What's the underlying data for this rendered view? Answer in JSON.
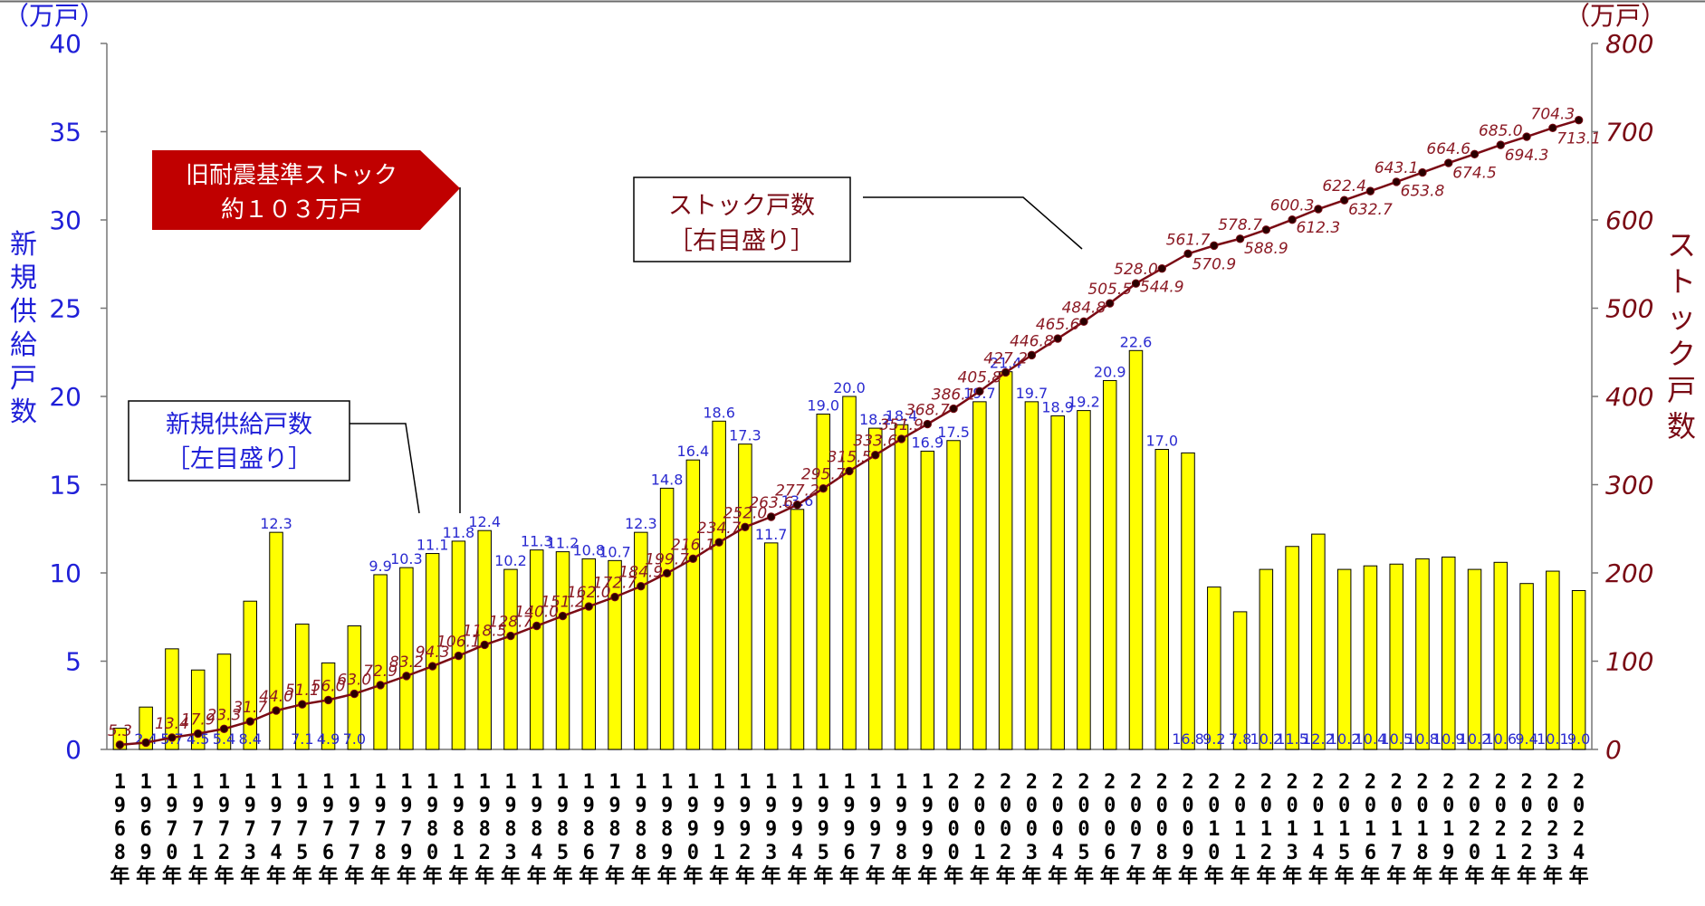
{
  "chart_data": {
    "type": "bar+line",
    "left_axis": {
      "unit": "（万戸）",
      "title": "新規供給戸数",
      "ticks": [
        "0",
        "5",
        "10",
        "15",
        "20",
        "25",
        "30",
        "35",
        "40"
      ],
      "ylim": [
        0,
        40
      ],
      "color": "#1f1fd8"
    },
    "right_axis": {
      "unit": "（万戸）",
      "title": "ストック戸数",
      "ticks": [
        "0",
        "100",
        "200",
        "300",
        "400",
        "500",
        "600",
        "700",
        "800"
      ],
      "ylim": [
        0,
        800
      ],
      "color": "#7a0a14"
    },
    "categories": [
      "1968年",
      "1969年",
      "1970年",
      "1971年",
      "1972年",
      "1973年",
      "1974年",
      "1975年",
      "1976年",
      "1977年",
      "1978年",
      "1979年",
      "1980年",
      "1981年",
      "1982年",
      "1983年",
      "1984年",
      "1985年",
      "1986年",
      "1987年",
      "1988年",
      "1989年",
      "1990年",
      "1991年",
      "1992年",
      "1993年",
      "1994年",
      "1995年",
      "1996年",
      "1997年",
      "1998年",
      "1999年",
      "2000年",
      "2001年",
      "2002年",
      "2003年",
      "2004年",
      "2005年",
      "2006年",
      "2007年",
      "2008年",
      "2009年",
      "2010年",
      "2011年",
      "2012年",
      "2013年",
      "2014年",
      "2015年",
      "2016年",
      "2017年",
      "2018年",
      "2019年",
      "2020年",
      "2021年",
      "2022年",
      "2023年",
      "2024年"
    ],
    "series": [
      {
        "name": "新規供給戸数",
        "type": "bar",
        "axis": "left",
        "color": "#ffff00",
        "values": [
          1.2,
          2.4,
          5.7,
          4.5,
          5.4,
          8.4,
          12.3,
          7.1,
          4.9,
          7.0,
          9.9,
          10.3,
          11.1,
          11.8,
          12.4,
          10.2,
          11.3,
          11.2,
          10.8,
          10.7,
          12.3,
          14.8,
          16.4,
          18.6,
          17.3,
          11.7,
          13.6,
          19.0,
          20.0,
          18.2,
          18.4,
          16.9,
          17.5,
          19.7,
          21.4,
          19.7,
          18.9,
          19.2,
          20.9,
          22.6,
          17.0,
          16.8,
          9.2,
          7.8,
          10.2,
          11.5,
          12.2,
          10.2,
          10.4,
          10.5,
          10.8,
          10.9,
          10.2,
          10.6,
          9.4,
          10.1,
          9.0
        ],
        "labels": [
          "",
          "2.4",
          "5.7",
          "4.5",
          "5.4",
          "8.4",
          "12.3",
          "7.1",
          "4.9",
          "7.0",
          "9.9",
          "10.3",
          "11.1",
          "11.8",
          "12.4",
          "10.2",
          "11.3",
          "11.2",
          "10.8",
          "10.7",
          "12.3",
          "14.8",
          "16.4",
          "18.6",
          "17.3",
          "11.7",
          "13.6",
          "19.0",
          "20.0",
          "18.2",
          "18.4",
          "16.9",
          "17.5",
          "19.7",
          "21.4",
          "19.7",
          "18.9",
          "19.2",
          "20.9",
          "22.6",
          "17.0",
          "16.8",
          "9.2",
          "7.8",
          "10.2",
          "11.5",
          "12.2",
          "10.2",
          "10.4",
          "10.5",
          "10.8",
          "10.9",
          "10.2",
          "10.6",
          "9.4",
          "10.1",
          "9.0"
        ]
      },
      {
        "name": "ストック戸数",
        "type": "line",
        "axis": "right",
        "color": "#7a0a14",
        "values": [
          5.3,
          7.7,
          13.4,
          17.9,
          23.3,
          31.7,
          44.0,
          51.1,
          56.0,
          63.0,
          72.9,
          83.2,
          94.3,
          106.1,
          118.5,
          128.7,
          140.0,
          151.2,
          162.0,
          172.7,
          184.9,
          199.7,
          216.1,
          234.7,
          252.0,
          263.6,
          277.2,
          295.7,
          315.5,
          333.6,
          351.9,
          368.7,
          386.1,
          405.8,
          427.2,
          446.8,
          465.6,
          484.8,
          505.5,
          528.0,
          544.9,
          561.7,
          570.9,
          578.7,
          588.9,
          600.3,
          612.3,
          622.4,
          632.7,
          643.1,
          653.8,
          664.6,
          674.5,
          685.0,
          694.3,
          704.3,
          713.1
        ],
        "labels": [
          "5.3",
          "",
          "13.4",
          "17.9",
          "23.3",
          "31.7",
          "44.0",
          "51.1",
          "56.0",
          "63.0",
          "72.9",
          "83.2",
          "94.3",
          "106.1",
          "118.5",
          "128.7",
          "140.0",
          "151.2",
          "162.0",
          "172.7",
          "184.9",
          "199.7",
          "216.1",
          "234.7",
          "252.0",
          "263.6",
          "277.2",
          "295.7",
          "315.5",
          "333.6",
          "351.9",
          "368.7",
          "386.1",
          "405.8",
          "427.2",
          "446.8",
          "465.6",
          "484.8",
          "505.5",
          "528.0",
          "544.9",
          "561.7",
          "570.9",
          "578.7",
          "588.9",
          "600.3",
          "612.3",
          "622.4",
          "632.7",
          "643.1",
          "653.8",
          "664.6",
          "674.5",
          "685.0",
          "694.3",
          "704.3",
          "713.1"
        ]
      }
    ],
    "annotations": [
      {
        "name": "stock-callout",
        "lines": [
          "ストック戸数",
          "［右目盛り］"
        ]
      },
      {
        "name": "supply-callout",
        "lines": [
          "新規供給戸数",
          "［左目盛り］"
        ]
      },
      {
        "name": "old-standard-banner",
        "lines": [
          "旧耐震基準ストック",
          "約１０３万戸"
        ],
        "color": "#c00000"
      }
    ]
  }
}
